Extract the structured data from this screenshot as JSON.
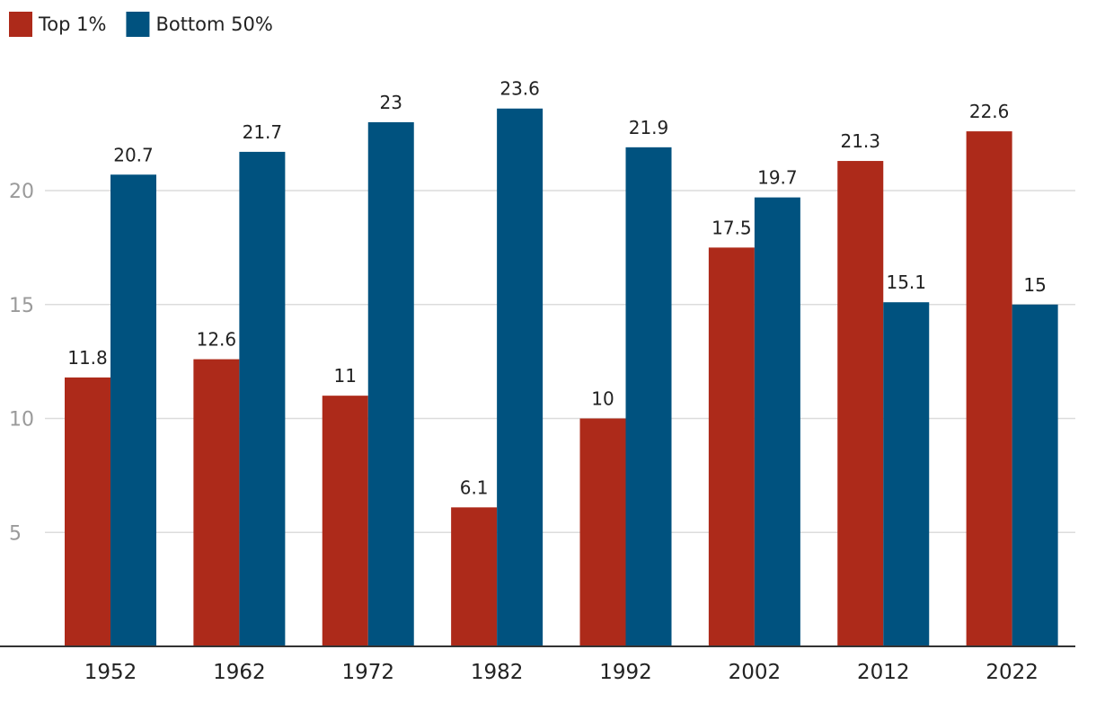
{
  "chart_data": {
    "type": "bar",
    "title": "",
    "xlabel": "",
    "ylabel": "",
    "categories": [
      "1952",
      "1962",
      "1972",
      "1982",
      "1992",
      "2002",
      "2012",
      "2022"
    ],
    "series": [
      {
        "name": "Top 1%",
        "color": "#ad2a1a",
        "values": [
          11.8,
          12.6,
          11,
          6.1,
          10,
          17.5,
          21.3,
          22.6
        ],
        "labels": [
          "11.8",
          "12.6",
          "11",
          "6.1",
          "10",
          "17.5",
          "21.3",
          "22.6"
        ]
      },
      {
        "name": "Bottom 50%",
        "color": "#00527f",
        "values": [
          20.7,
          21.7,
          23,
          23.6,
          21.9,
          19.7,
          15.1,
          15
        ],
        "labels": [
          "20.7",
          "21.7",
          "23",
          "23.6",
          "21.9",
          "19.7",
          "15.1",
          "15"
        ]
      }
    ],
    "yticks": [
      "5",
      "10",
      "15",
      "20"
    ],
    "ylim": [
      0,
      25
    ],
    "grid": true,
    "legend": "top-left"
  }
}
